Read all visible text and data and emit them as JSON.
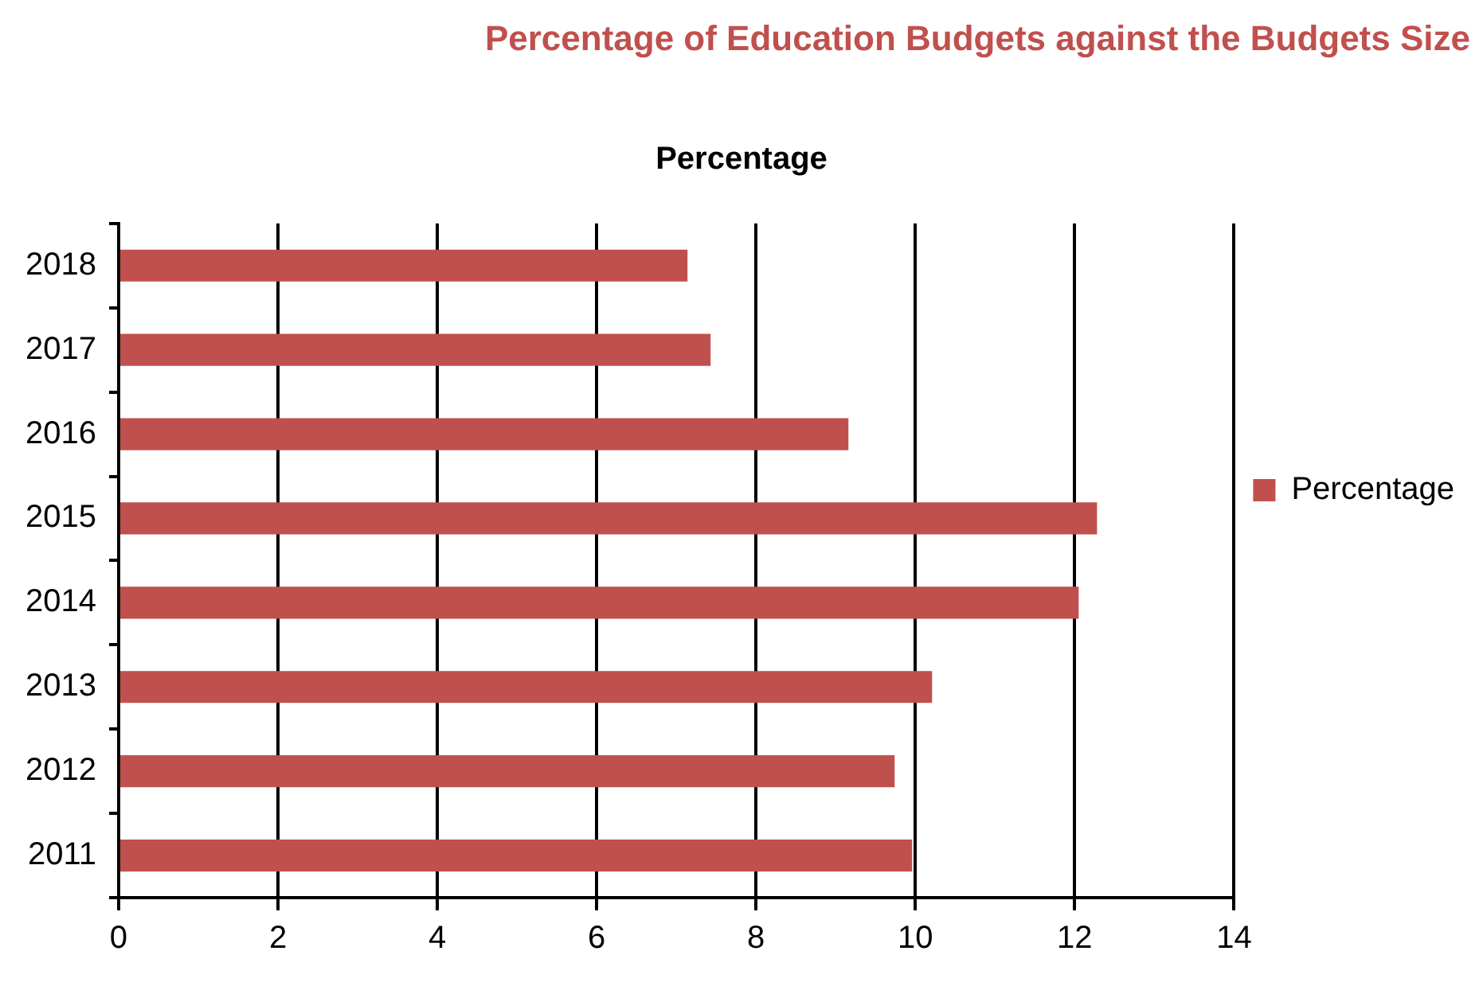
{
  "chart_data": {
    "type": "bar",
    "orientation": "horizontal",
    "title": "Percentage of Education Budgets against the Budgets Size",
    "subtitle": "Percentage",
    "categories": [
      "2018",
      "2017",
      "2016",
      "2015",
      "2014",
      "2013",
      "2012",
      "2011"
    ],
    "series": [
      {
        "name": "Percentage",
        "color": "#c0504d",
        "values": [
          7.14,
          7.43,
          9.16,
          12.28,
          12.05,
          10.21,
          9.74,
          9.96
        ]
      }
    ],
    "xlim": [
      0,
      14
    ],
    "xticks": [
      0,
      2,
      4,
      6,
      8,
      10,
      12,
      14
    ],
    "grid": "x",
    "legend": "right"
  }
}
